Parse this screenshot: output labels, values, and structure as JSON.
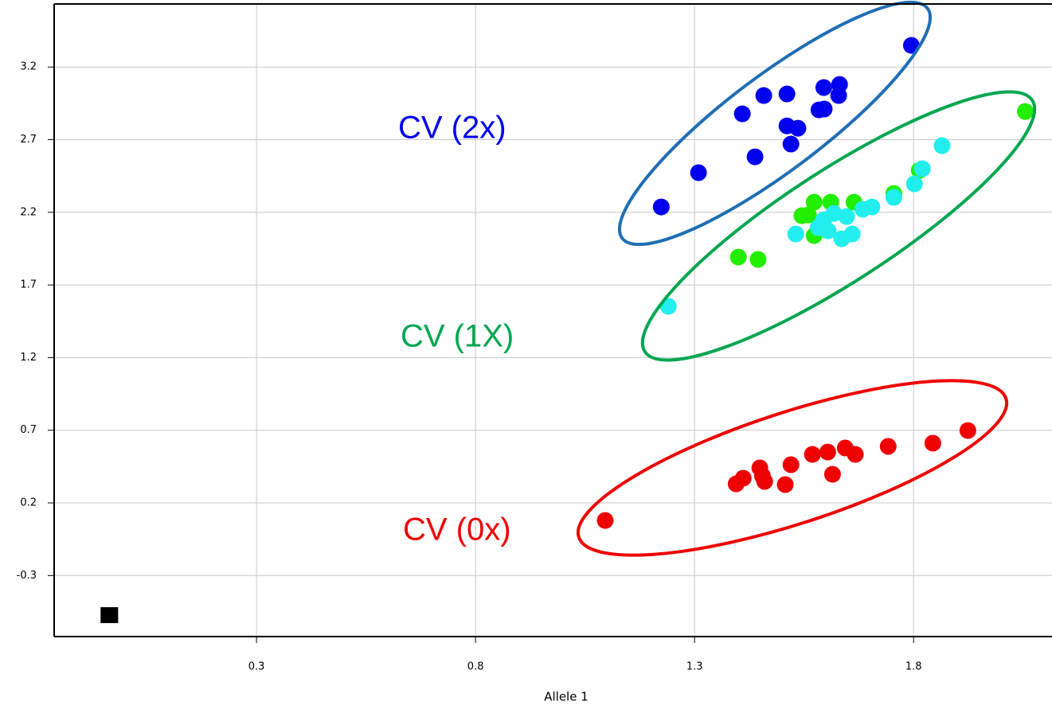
{
  "chart_data": {
    "type": "scatter",
    "x_label": "Allele 1",
    "xlim": [
      -0.162,
      2.116
    ],
    "ylim": [
      -0.72,
      3.634
    ],
    "xticks": [
      0.3,
      0.8,
      1.3,
      1.8
    ],
    "yticks": [
      3.2,
      2.7,
      2.2,
      1.7,
      1.2,
      0.7,
      0.2,
      -0.3
    ],
    "grid": true,
    "series": [
      {
        "color": "#0000ee",
        "marker": "circle",
        "x": [
          1.224,
          1.309,
          1.409,
          1.458,
          1.511,
          1.438,
          1.511,
          1.536,
          1.52,
          1.584,
          1.596,
          1.595,
          1.631,
          1.629,
          1.795
        ],
        "y": [
          2.237,
          2.473,
          2.878,
          3.004,
          3.015,
          2.582,
          2.795,
          2.779,
          2.67,
          2.905,
          2.911,
          3.059,
          3.08,
          3.004,
          3.349
        ]
      },
      {
        "color": "#22ee00",
        "marker": "circle",
        "x": [
          2.055,
          1.4,
          1.445,
          1.545,
          1.573,
          1.611,
          1.664,
          1.573,
          1.755,
          1.813,
          1.56
        ],
        "y": [
          2.894,
          1.892,
          1.876,
          2.177,
          2.27,
          2.27,
          2.27,
          2.04,
          2.33,
          2.489,
          2.182
        ]
      },
      {
        "color": "#22eeee",
        "marker": "circle",
        "x": [
          1.24,
          1.531,
          1.582,
          1.618,
          1.647,
          1.605,
          1.636,
          1.66,
          1.684,
          1.705,
          1.755,
          1.802,
          1.82,
          1.865,
          1.595
        ],
        "y": [
          1.553,
          2.051,
          2.095,
          2.193,
          2.171,
          2.073,
          2.018,
          2.051,
          2.221,
          2.237,
          2.303,
          2.396,
          2.5,
          2.659,
          2.149
        ]
      },
      {
        "color": "#ee0000",
        "marker": "circle",
        "x": [
          1.096,
          1.395,
          1.411,
          1.449,
          1.455,
          1.46,
          1.507,
          1.52,
          1.569,
          1.604,
          1.615,
          1.644,
          1.667,
          1.742,
          1.844,
          1.924
        ],
        "y": [
          0.079,
          0.331,
          0.37,
          0.441,
          0.386,
          0.348,
          0.326,
          0.463,
          0.534,
          0.55,
          0.397,
          0.578,
          0.534,
          0.589,
          0.611,
          0.698
        ]
      },
      {
        "color": "#000000",
        "marker": "square",
        "x": [
          -0.036
        ],
        "y": [
          -0.578
        ]
      }
    ],
    "annotations": [
      {
        "text": "CV (2x)",
        "color": "#0000ee"
      },
      {
        "text": "CV (1X)",
        "color": "#00a650"
      },
      {
        "text": "CV (0x)",
        "color": "#ee0000"
      }
    ]
  }
}
